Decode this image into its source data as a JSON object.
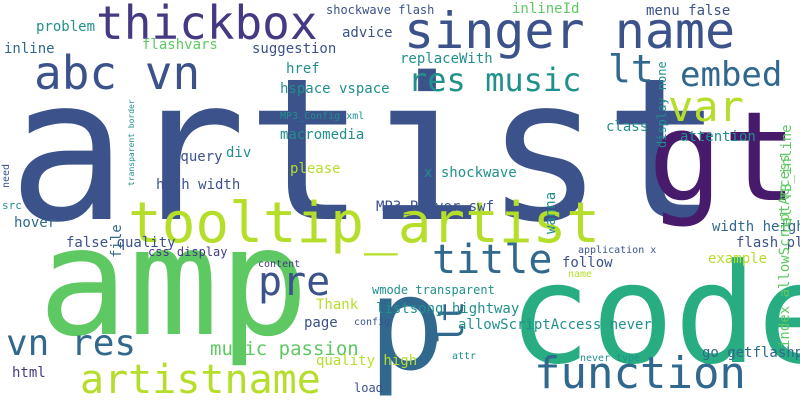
{
  "palette": {
    "navy": "#3b528b",
    "purple": "#481a6c",
    "teal": "#21908c",
    "blue": "#31688e",
    "green": "#5ec962",
    "lime": "#b5de2b",
    "sea": "#35b779",
    "indigo": "#443983"
  },
  "words": [
    {
      "text": "artist"
    },
    {
      "text": "amp"
    },
    {
      "text": "code"
    },
    {
      "text": "gt"
    },
    {
      "text": "p"
    },
    {
      "text": "tooltip_artist"
    },
    {
      "text": "singer name"
    },
    {
      "text": "thickbox"
    },
    {
      "text": "abc vn"
    },
    {
      "text": "function"
    },
    {
      "text": "artistname"
    },
    {
      "text": "var"
    },
    {
      "text": "pre"
    },
    {
      "text": "title"
    },
    {
      "text": "vn res"
    },
    {
      "text": "lt"
    },
    {
      "text": "res music"
    },
    {
      "text": "embed"
    },
    {
      "text": "lt"
    },
    {
      "text": "music passion"
    },
    {
      "text": "inline"
    },
    {
      "text": "problem"
    },
    {
      "text": "flashvars"
    },
    {
      "text": "suggestion"
    },
    {
      "text": "shockwave flash"
    },
    {
      "text": "inlineId"
    },
    {
      "text": "menu false"
    },
    {
      "text": "advice"
    },
    {
      "text": "replaceWith"
    },
    {
      "text": "href"
    },
    {
      "text": "hspace vspace"
    },
    {
      "text": "MP3_Config xml"
    },
    {
      "text": "macromedia"
    },
    {
      "text": "jquery"
    },
    {
      "text": "div"
    },
    {
      "text": "high width"
    },
    {
      "text": "please"
    },
    {
      "text": "x shockwave"
    },
    {
      "text": "class"
    },
    {
      "text": "attention"
    },
    {
      "text": "hover"
    },
    {
      "text": "MP3_Player swf"
    },
    {
      "text": "width height"
    },
    {
      "text": "false quality"
    },
    {
      "text": "flash pluginspage"
    },
    {
      "text": "css display"
    },
    {
      "text": "application x"
    },
    {
      "text": "content"
    },
    {
      "text": "follow"
    },
    {
      "text": "example"
    },
    {
      "text": "name"
    },
    {
      "text": "Thank"
    },
    {
      "text": "allowScriptAccess never"
    },
    {
      "text": "wmode transparent"
    },
    {
      "text": "listsong hightway"
    },
    {
      "text": "page"
    },
    {
      "text": "config"
    },
    {
      "text": "go getflashplayer"
    },
    {
      "text": "quality high"
    },
    {
      "text": "html"
    },
    {
      "text": "attr"
    },
    {
      "text": "never type"
    },
    {
      "text": "load"
    },
    {
      "text": "need"
    },
    {
      "text": "transparent border"
    },
    {
      "text": "src"
    },
    {
      "text": "file"
    },
    {
      "text": "wanna"
    },
    {
      "text": "display none"
    },
    {
      "text": "rel TB_inline"
    },
    {
      "text": "index allowScriptAccess"
    }
  ]
}
